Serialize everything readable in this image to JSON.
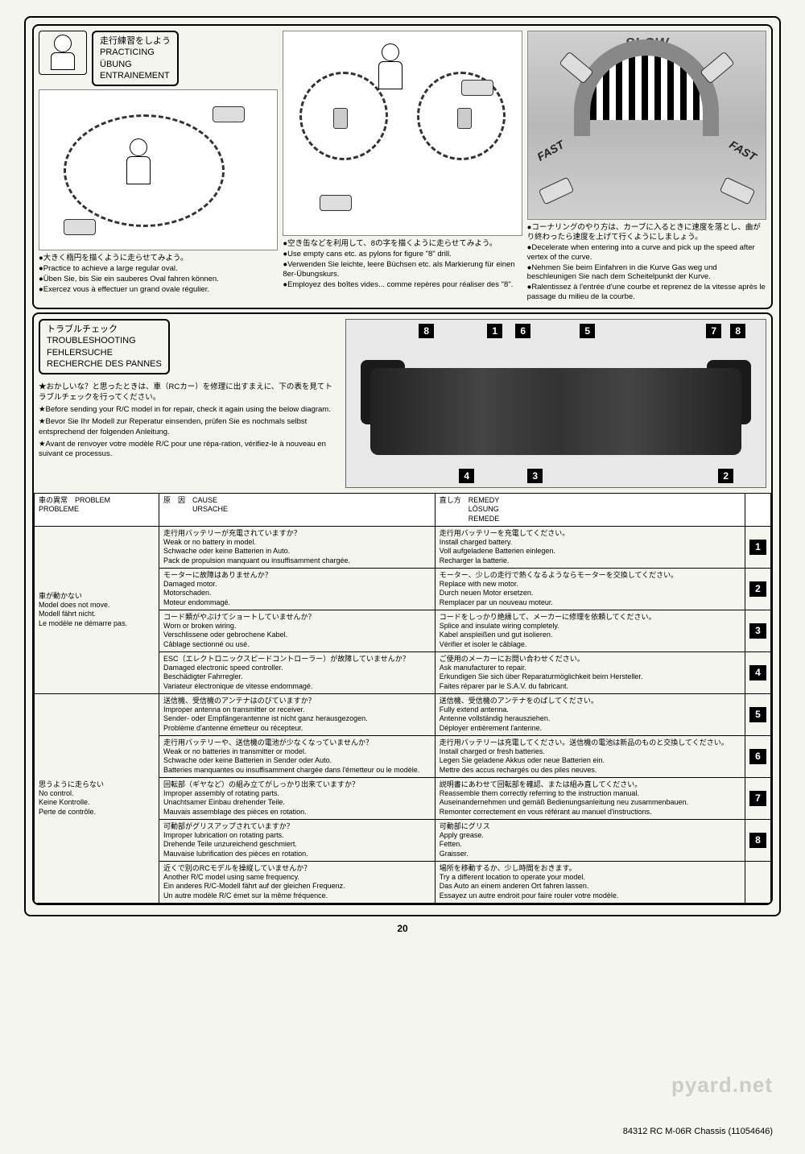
{
  "practicing": {
    "title_jp": "走行練習をしよう",
    "title_en": "PRACTICING",
    "title_de": "ÜBUNG",
    "title_fr": "ENTRAINEMENT",
    "panel1": {
      "jp": "●大きく楕円を描くように走らせてみよう。",
      "en": "●Practice to achieve a large regular oval.",
      "de": "●Üben Sie, bis Sie ein sauberes Oval fahren können.",
      "fr": "●Exercez vous à effectuer un grand ovale régulier."
    },
    "panel2": {
      "jp": "●空き缶などを利用して、8の字を描くように走らせてみよう。",
      "en": "●Use empty cans etc. as pylons for figure \"8\" drill.",
      "de": "●Verwenden Sie leichte, leere Büchsen etc. als Markierung für einen 8er-Übungskurs.",
      "fr": "●Employez des boîtes vides... comme repères pour réaliser des \"8\"."
    },
    "panel3": {
      "slow": "SLOW",
      "fast": "FAST",
      "jp": "●コーナリングのやり方は、カーブに入るときに速度を落とし、曲がり終わったら速度を上げて行くようにしましょう。",
      "en": "●Decelerate when entering into a curve and pick up the speed after vertex of the curve.",
      "de": "●Nehmen Sie beim Einfahren in die Kurve Gas weg und beschleunigen Sie nach dem Scheitelpunkt der Kurve.",
      "fr": "●Ralentissez à l'entrée d'une courbe et reprenez de la vitesse après le passage du milieu de la courbe."
    }
  },
  "troubleshoot": {
    "title_jp": "トラブルチェック",
    "title_en": "TROUBLESHOOTING",
    "title_de": "FEHLERSUCHE",
    "title_fr": "RECHERCHE DES PANNES",
    "intro_jp": "★おかしいな？と思ったときは、車（RCカー）を修理に出すまえに、下の表を見てトラブルチェックを行ってください。",
    "intro_en": "★Before sending your R/C model in for repair, check it again using the below diagram.",
    "intro_de": "★Bevor Sie Ihr Modell zur Reperatur einsenden, prüfen Sie es nochmals selbst entsprechend der folgenden Anleitung.",
    "intro_fr": "★Avant de renvoyer votre modèle R/C pour une répa-ration, vérifiez-le à nouveau en suivant ce processus.",
    "callouts": [
      "8",
      "1",
      "6",
      "5",
      "7",
      "8",
      "4",
      "3",
      "2"
    ]
  },
  "table": {
    "headers": {
      "problem": "車の異常　PROBLEM\nPROBLEME",
      "cause": "原　因　CAUSE\n　　　　URSACHE",
      "remedy": "直し方　REMEDY\n　　　　LÖSUNG\n　　　　REMEDE"
    },
    "problems": [
      {
        "label": "車が動かない\nModel does not move.\nModell fährt nicht.\nLe modèle ne démarre pas.",
        "rows": [
          {
            "cause": "走行用バッテリーが充電されていますか？\nWeak or no battery in model.\nSchwache oder keine Batterien in Auto.\nPack de propulsion manquant ou insuffisamment chargée.",
            "remedy": "走行用バッテリーを充電してください。\nInstall charged battery.\nVoll aufgeladene Batterien einlegen.\nRecharger la batterie.",
            "num": "1"
          },
          {
            "cause": "モーターに故障はありませんか？\nDamaged motor.\nMotorschaden.\nMoteur endommagé.",
            "remedy": "モーター、少しの走行で熱くなるようならモーターを交換してください。\nReplace with new motor.\nDurch neuen Motor ersetzen.\nRemplacer par un nouveau moteur.",
            "num": "2"
          },
          {
            "cause": "コード類がやぶけてショートしていませんか？\nWorn or broken wiring.\nVerschlissene oder gebrochene Kabel.\nCâblage sectionné ou usé.",
            "remedy": "コードをしっかり絶縁して、メーカーに修理を依頼してください。\nSplice and insulate wiring completely.\nKabel anspleißen und gut isolieren.\nVérifier et isoler le câblage.",
            "num": "3"
          },
          {
            "cause": "ESC（エレクトロニックスピードコントローラー）が故障していませんか？\nDamaged electronic speed controller.\nBeschädigter Fahrregler.\nVariateur électronique de vitesse endommagé.",
            "remedy": "ご使用のメーカーにお問い合わせください。\nAsk manufacturer to repair.\nErkundigen Sie sich über Reparaturmöglichkeit beim Hersteller.\nFaites réparer par le S.A.V. du fabricant.",
            "num": "4"
          }
        ]
      },
      {
        "label": "思うように走らない\nNo control.\nKeine Kontrolle.\nPerte de contrôle.",
        "rows": [
          {
            "cause": "送信機、受信機のアンテナはのびていますか？\nImproper antenna on transmitter or receiver.\nSender- oder Empfängerantenne ist nicht ganz herausgezogen.\nProblème d'antenne émetteur ou récepteur.",
            "remedy": "送信機、受信機のアンテナをのばしてください。\nFully extend antenna.\nAntenne vollständig herausziehen.\nDéployer entièrement l'antenne.",
            "num": "5"
          },
          {
            "cause": "走行用バッテリーや、送信機の電池が少なくなっていませんか？\nWeak or no batteries in transmitter or model.\nSchwache oder keine Batterien in Sender oder Auto.\nBatteries manquantes ou insuffisamment chargée dans l'émetteur ou le modèle.",
            "remedy": "走行用バッテリーは充電してください。送信機の電池は新品のものと交換してください。\nInstall charged or fresh batteries.\nLegen Sie geladene Akkus oder neue Batterien ein.\nMettre des accus rechargés ou des piles neuves.",
            "num": "6"
          },
          {
            "cause": "回転部（ギヤなど）の組み立てがしっかり出来ていますか？\nImproper assembly of rotating parts.\nUnachtsamer Einbau drehender Teile.\nMauvais assemblage des pièces en rotation.",
            "remedy": "説明書にあわせて回転部を確認、または組み直してください。\nReassemble them correctly referring to the instruction manual.\nAuseinandernehmen und gemäß Bedienungsanleitung neu zusammenbauen.\nRemonter correctement en vous référant au manuel d'instructions.",
            "num": "7"
          },
          {
            "cause": "可動部がグリスアップされていますか？\nImproper lubrication on rotating parts.\nDrehende Teile unzureichend geschmiert.\nMauvaise lubrification des pièces en rotation.",
            "remedy": "可動部にグリス\nApply grease.\nFetten.\nGraisser.",
            "num": "8"
          },
          {
            "cause": "近くで別のRCモデルを操縦していませんか？\nAnother R/C model using same frequency.\nEin anderes R/C-Modell fährt auf der gleichen Frequenz.\nUn autre modèle R/C émet sur la même fréquence.",
            "remedy": "場所を移動するか、少し時間をおきます。\nTry a different location to operate your model.\nDas Auto an einem anderen Ort fahren lassen.\nEssayez un autre endroit pour faire rouler votre modèle.",
            "num": ""
          }
        ]
      }
    ]
  },
  "footer": {
    "page": "20",
    "code": "84312 RC M-06R Chassis (11054646)",
    "watermark": "pyard.net"
  }
}
